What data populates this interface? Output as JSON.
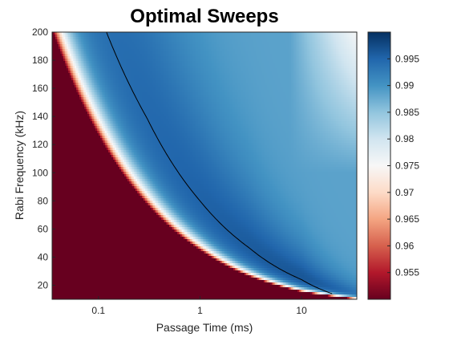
{
  "chart_data": {
    "type": "heatmap",
    "title": "Optimal Sweeps",
    "xlabel": "Passage Time (ms)",
    "ylabel": "Rabi Frequency (kHz)",
    "x_scale": "log",
    "xlim": [
      0.035,
      35
    ],
    "ylim": [
      10,
      200
    ],
    "x_ticks": [
      0.1,
      1,
      10
    ],
    "x_tick_labels": [
      "0.1",
      "1",
      "10"
    ],
    "y_ticks": [
      20,
      40,
      60,
      80,
      100,
      120,
      140,
      160,
      180,
      200
    ],
    "y_tick_labels": [
      "20",
      "40",
      "60",
      "80",
      "100",
      "120",
      "140",
      "160",
      "180",
      "200"
    ],
    "colorbar": {
      "range": [
        0.95,
        1.0
      ],
      "ticks": [
        0.955,
        0.96,
        0.965,
        0.97,
        0.975,
        0.98,
        0.985,
        0.99,
        0.995
      ],
      "tick_labels": [
        "0.955",
        "0.96",
        "0.965",
        "0.97",
        "0.975",
        "0.98",
        "0.985",
        "0.99",
        "0.995"
      ],
      "colormap": [
        "#67001f",
        "#b2182b",
        "#d6604d",
        "#f4a582",
        "#fddbc7",
        "#f7f7f7",
        "#d1e5f0",
        "#92c5de",
        "#4393c3",
        "#2166ac",
        "#053061"
      ]
    },
    "boundary_curve": {
      "x": [
        0.038,
        0.1,
        0.3,
        1,
        3,
        10,
        25
      ],
      "y": [
        190,
        124,
        76,
        44,
        26,
        15,
        11
      ]
    },
    "optimal_curve": {
      "x": [
        0.12,
        0.3,
        1,
        3,
        10,
        20
      ],
      "y": [
        200,
        139,
        80,
        47,
        24,
        14
      ]
    },
    "colors": {
      "frame": "#262626",
      "curve": "#000000"
    }
  }
}
